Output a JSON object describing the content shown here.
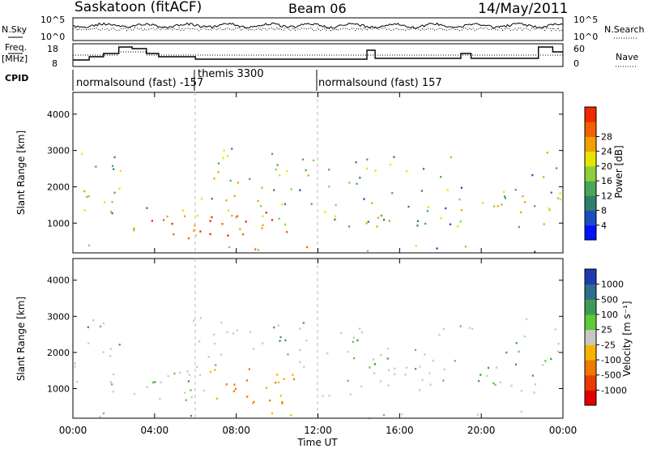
{
  "header": {
    "title": "Saskatoon (fitACF)",
    "beam": "Beam 06",
    "date": "14/May/2011"
  },
  "noise_panel": {
    "left_label": "N.Sky",
    "left_ticks": [
      "10^5",
      "10^0"
    ],
    "right_ticks": [
      "10^5",
      "10^0"
    ],
    "right_label": "N.Search"
  },
  "freq_panel": {
    "left_label_1": "Freq.",
    "left_label_2": "[MHz]",
    "left_ticks": [
      "18",
      "8"
    ],
    "right_ticks": [
      "60",
      "0"
    ],
    "right_label": "Nave"
  },
  "cpid": {
    "label": "CPID",
    "segments": [
      {
        "text": "normalsound (fast) -157",
        "start_hour": 0
      },
      {
        "text": "themis 3300",
        "start_hour": 6
      },
      {
        "text": "normalsound (fast) 157",
        "start_hour": 12
      }
    ]
  },
  "chart_data": [
    {
      "type": "heatmap",
      "name": "Power",
      "ylabel": "Slant Range [km]",
      "xlabel": "Time UT",
      "xlim_hours": [
        0,
        24
      ],
      "ylim": [
        180,
        4600
      ],
      "y_ticks": [
        1000,
        2000,
        3000,
        4000
      ],
      "colorbar": {
        "label": "Power [dB]",
        "ticks": [
          "4",
          "8",
          "12",
          "16",
          "20",
          "24",
          "28"
        ],
        "colors": [
          "#0012ff",
          "#1b4fc0",
          "#2f7f6a",
          "#49a65a",
          "#8fcf3a",
          "#e7e300",
          "#f2a000",
          "#f06000",
          "#ee2a00"
        ]
      }
    },
    {
      "type": "heatmap",
      "name": "Velocity",
      "ylabel": "Slant Range [km]",
      "xlabel": "Time UT",
      "xlim_hours": [
        0,
        24
      ],
      "ylim": [
        180,
        4600
      ],
      "y_ticks": [
        1000,
        2000,
        3000,
        4000
      ],
      "x_tick_labels": [
        "00:00",
        "04:00",
        "08:00",
        "12:00",
        "16:00",
        "20:00",
        "00:00"
      ],
      "colorbar": {
        "label": "Velocity [m s⁻¹]",
        "ticks": [
          "1000",
          "500",
          "100",
          "25",
          "-25",
          "-100",
          "-500",
          "-1000"
        ],
        "colors": [
          "#1f3cae",
          "#2e6e8c",
          "#3f9a5a",
          "#5ccc3a",
          "#c8c8c0",
          "#f5b400",
          "#f07800",
          "#e83c00",
          "#e00000"
        ]
      }
    }
  ]
}
